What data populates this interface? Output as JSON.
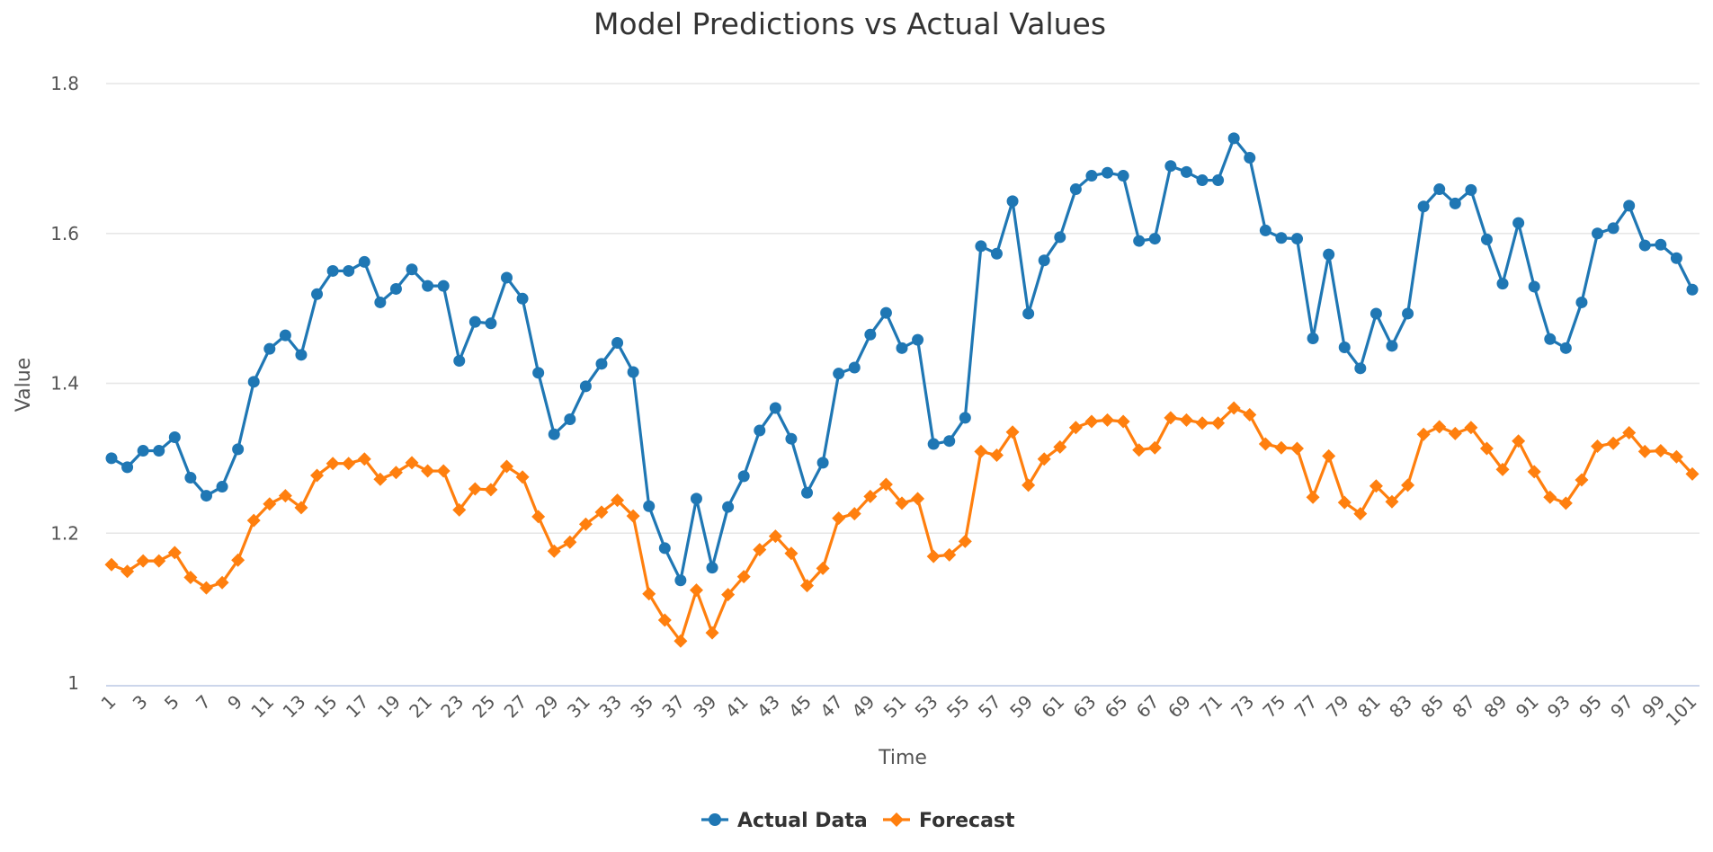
{
  "chart_data": {
    "type": "line",
    "title": "Model Predictions vs Actual Values",
    "xlabel": "Time",
    "ylabel": "Value",
    "ylim": [
      1,
      1.8
    ],
    "yticks": [
      "1",
      "1.2",
      "1.4",
      "1.6",
      "1.8"
    ],
    "grid": true,
    "legend_position": "bottom-center",
    "x": [
      1,
      2,
      3,
      4,
      5,
      6,
      7,
      8,
      9,
      10,
      11,
      12,
      13,
      14,
      15,
      16,
      17,
      18,
      19,
      20,
      21,
      22,
      23,
      24,
      25,
      26,
      27,
      28,
      29,
      30,
      31,
      32,
      33,
      34,
      35,
      36,
      37,
      38,
      39,
      40,
      41,
      42,
      43,
      44,
      45,
      46,
      47,
      48,
      49,
      50,
      51,
      52,
      53,
      54,
      55,
      56,
      57,
      58,
      59,
      60,
      61,
      62,
      63,
      64,
      65,
      66,
      67,
      68,
      69,
      70,
      71,
      72,
      73,
      74,
      75,
      76,
      77,
      78,
      79,
      80,
      81,
      82,
      83,
      84,
      85,
      86,
      87,
      88,
      89,
      90,
      91,
      92,
      93,
      94,
      95,
      96,
      97,
      98,
      99,
      100,
      101
    ],
    "series": [
      {
        "name": "Actual Data",
        "color": "#1f77b4",
        "marker": "circle",
        "values": [
          1.3,
          1.288,
          1.31,
          1.31,
          1.328,
          1.274,
          1.25,
          1.262,
          1.312,
          1.402,
          1.446,
          1.464,
          1.438,
          1.519,
          1.55,
          1.55,
          1.562,
          1.508,
          1.526,
          1.552,
          1.53,
          1.53,
          1.43,
          1.482,
          1.48,
          1.541,
          1.513,
          1.414,
          1.332,
          1.352,
          1.396,
          1.426,
          1.454,
          1.415,
          1.236,
          1.18,
          1.137,
          1.246,
          1.154,
          1.235,
          1.276,
          1.337,
          1.367,
          1.326,
          1.254,
          1.294,
          1.413,
          1.421,
          1.465,
          1.494,
          1.447,
          1.458,
          1.319,
          1.323,
          1.354,
          1.583,
          1.573,
          1.643,
          1.493,
          1.564,
          1.595,
          1.659,
          1.677,
          1.681,
          1.677,
          1.59,
          1.593,
          1.69,
          1.682,
          1.671,
          1.671,
          1.727,
          1.701,
          1.604,
          1.594,
          1.593,
          1.46,
          1.572,
          1.448,
          1.42,
          1.493,
          1.45,
          1.493,
          1.636,
          1.659,
          1.64,
          1.658,
          1.592,
          1.533,
          1.614,
          1.529,
          1.459,
          1.447,
          1.508,
          1.6,
          1.607,
          1.637,
          1.584,
          1.585,
          1.567,
          1.525
        ]
      },
      {
        "name": "Forecast",
        "color": "#ff7f0e",
        "marker": "diamond",
        "values": [
          1.158,
          1.149,
          1.163,
          1.163,
          1.174,
          1.141,
          1.127,
          1.134,
          1.164,
          1.217,
          1.239,
          1.25,
          1.234,
          1.277,
          1.293,
          1.293,
          1.299,
          1.272,
          1.281,
          1.294,
          1.283,
          1.283,
          1.231,
          1.259,
          1.258,
          1.289,
          1.275,
          1.222,
          1.176,
          1.188,
          1.212,
          1.228,
          1.244,
          1.223,
          1.119,
          1.084,
          1.056,
          1.124,
          1.067,
          1.118,
          1.142,
          1.178,
          1.196,
          1.173,
          1.13,
          1.153,
          1.22,
          1.226,
          1.249,
          1.265,
          1.24,
          1.246,
          1.169,
          1.171,
          1.189,
          1.309,
          1.304,
          1.335,
          1.264,
          1.299,
          1.315,
          1.341,
          1.349,
          1.351,
          1.349,
          1.311,
          1.314,
          1.354,
          1.351,
          1.347,
          1.347,
          1.367,
          1.358,
          1.319,
          1.314,
          1.313,
          1.248,
          1.303,
          1.241,
          1.226,
          1.263,
          1.242,
          1.264,
          1.332,
          1.342,
          1.333,
          1.341,
          1.313,
          1.285,
          1.323,
          1.282,
          1.248,
          1.24,
          1.271,
          1.316,
          1.32,
          1.334,
          1.309,
          1.31,
          1.302,
          1.279
        ]
      }
    ]
  }
}
